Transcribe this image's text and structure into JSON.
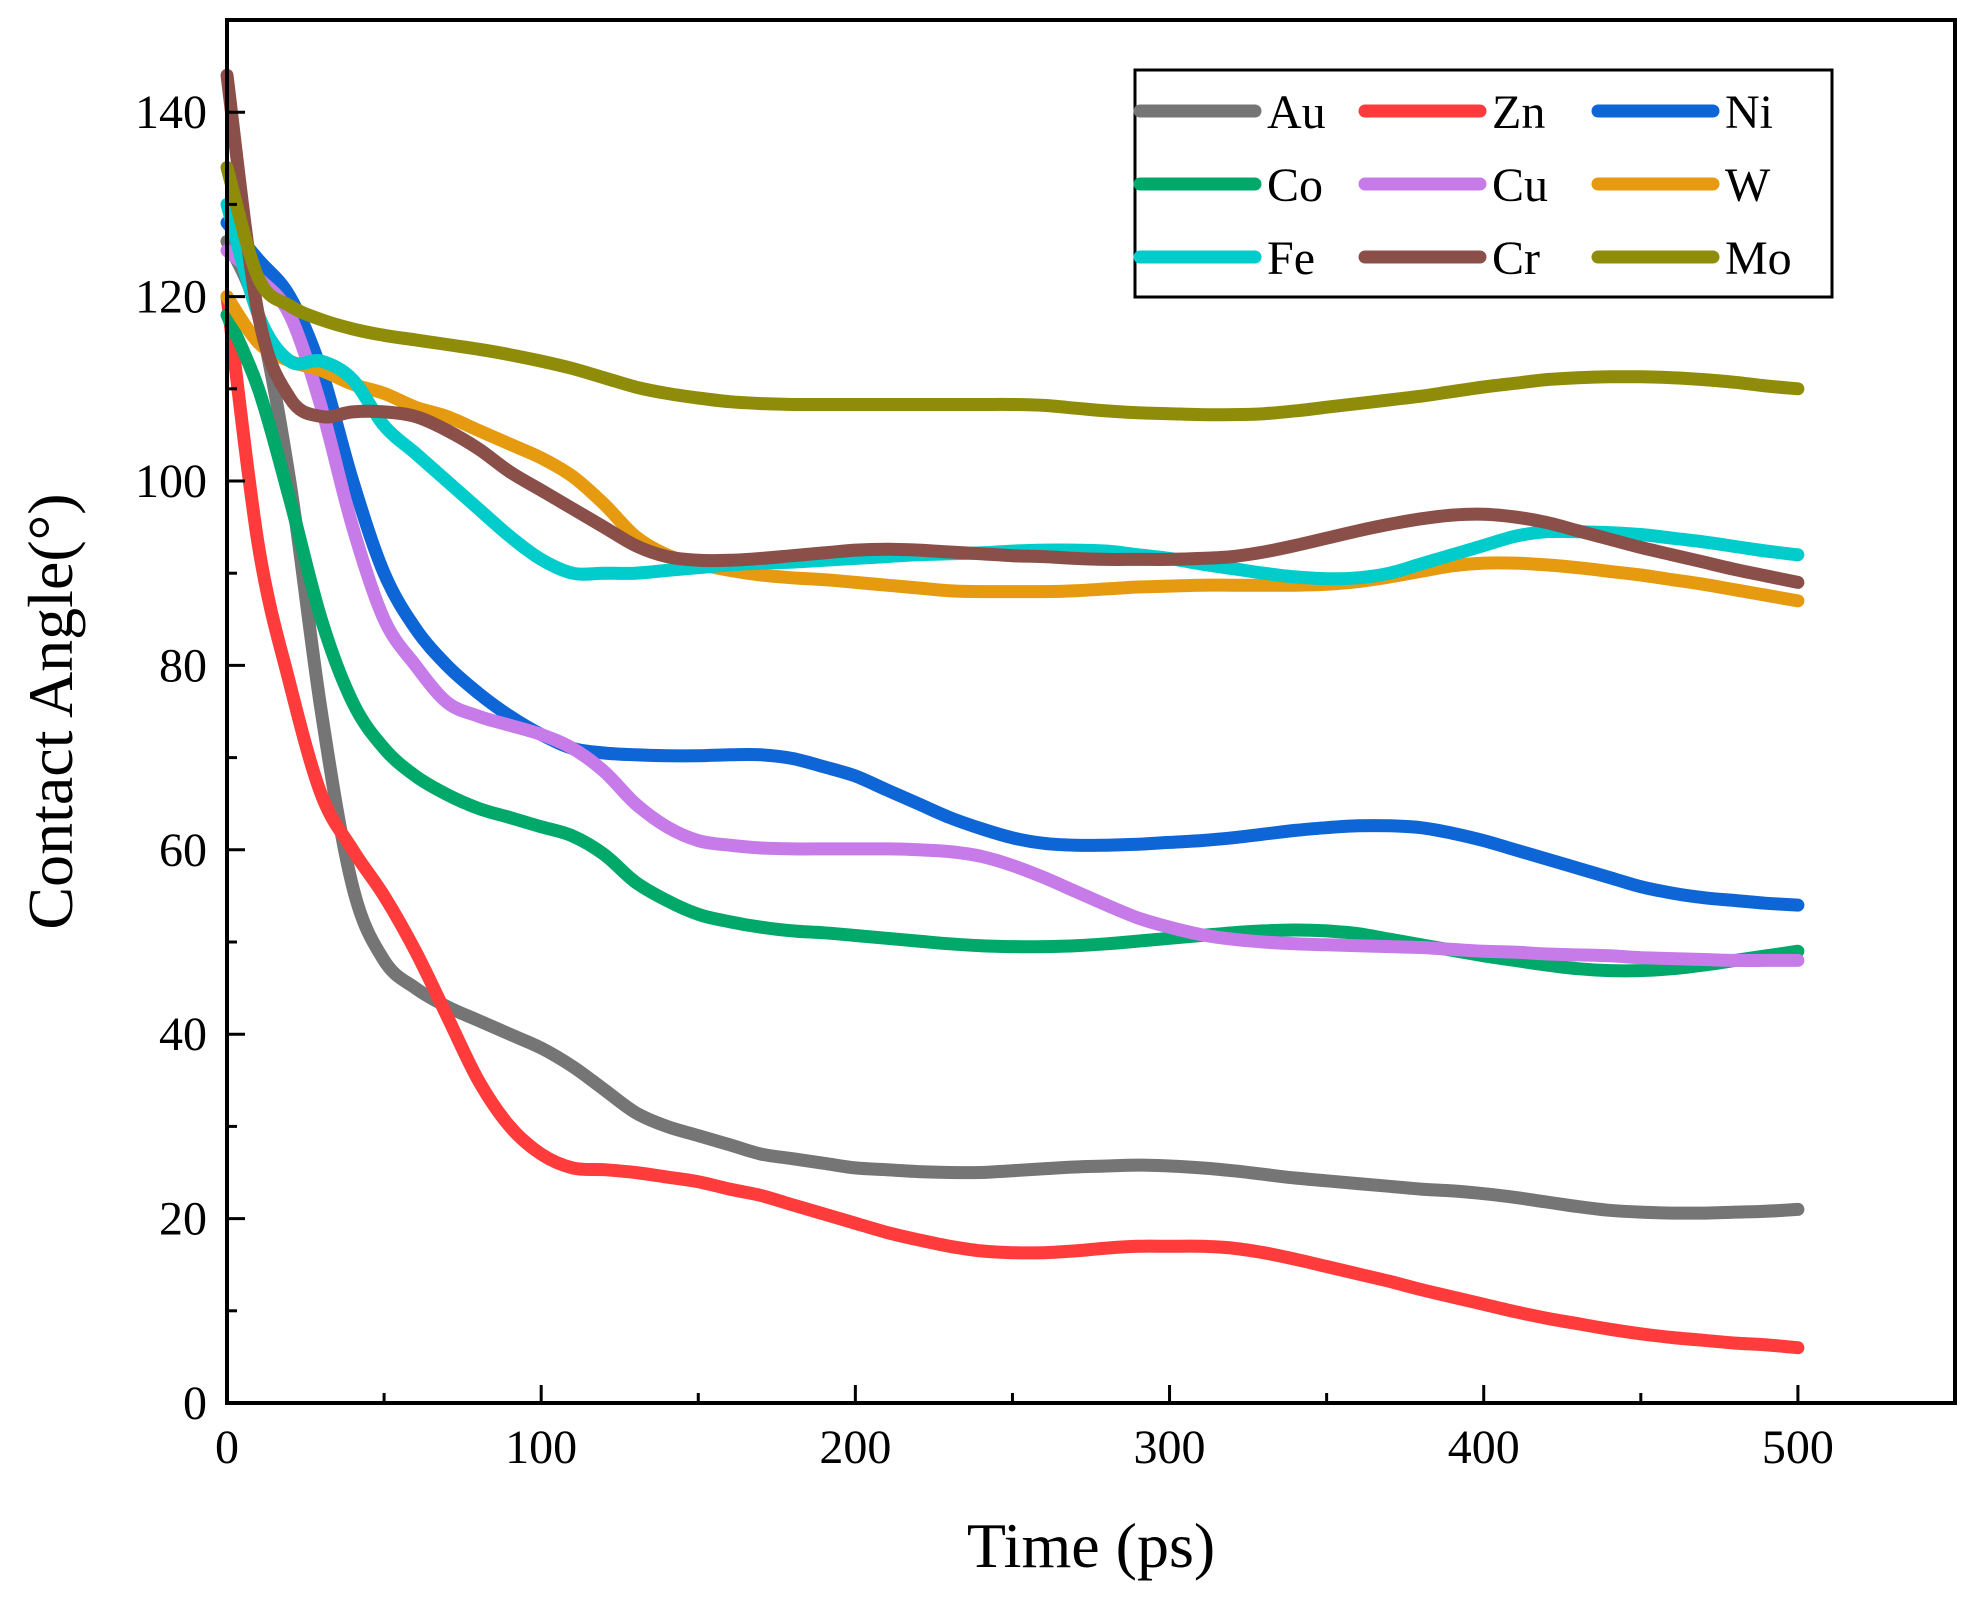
{
  "chart_data": {
    "type": "line",
    "title": "",
    "xlabel": "Time (ps)",
    "ylabel": "Contact Angle(°)",
    "xlim": [
      0,
      550
    ],
    "ylim": [
      0,
      150
    ],
    "xticks": [
      0,
      100,
      200,
      300,
      400,
      500
    ],
    "yticks": [
      0,
      20,
      40,
      60,
      80,
      100,
      120,
      140
    ],
    "grid": false,
    "legend_position": "top-right",
    "x": [
      0,
      10,
      20,
      30,
      40,
      50,
      60,
      70,
      80,
      90,
      100,
      110,
      120,
      130,
      140,
      150,
      160,
      170,
      180,
      190,
      200,
      210,
      220,
      230,
      240,
      250,
      260,
      270,
      280,
      290,
      300,
      310,
      320,
      330,
      340,
      350,
      360,
      370,
      380,
      390,
      400,
      410,
      420,
      430,
      440,
      450,
      460,
      470,
      480,
      490,
      500
    ],
    "series": [
      {
        "name": "Au",
        "color": "#757575",
        "values": [
          126,
          118,
          100,
          75,
          56,
          48,
          45,
          43,
          41.5,
          40,
          38.5,
          36.5,
          34,
          31.5,
          30,
          29,
          28,
          27,
          26.5,
          26,
          25.5,
          25.3,
          25.1,
          25,
          25,
          25.2,
          25.4,
          25.6,
          25.7,
          25.8,
          25.7,
          25.5,
          25.2,
          24.8,
          24.4,
          24.1,
          23.8,
          23.5,
          23.2,
          23,
          22.7,
          22.3,
          21.8,
          21.3,
          20.9,
          20.7,
          20.6,
          20.6,
          20.7,
          20.8,
          21
        ]
      },
      {
        "name": "Zn",
        "color": "#ff3b3b",
        "values": [
          120,
          93,
          78,
          66,
          60,
          55,
          49,
          42,
          35,
          30,
          27,
          25.5,
          25.3,
          25,
          24.5,
          24,
          23.2,
          22.5,
          21.5,
          20.5,
          19.5,
          18.5,
          17.7,
          17,
          16.5,
          16.3,
          16.3,
          16.5,
          16.8,
          17,
          17,
          17,
          16.8,
          16.3,
          15.6,
          14.8,
          14,
          13.2,
          12.3,
          11.5,
          10.7,
          9.9,
          9.2,
          8.6,
          8,
          7.5,
          7.1,
          6.8,
          6.5,
          6.3,
          6
        ]
      },
      {
        "name": "Ni",
        "color": "#0e66d6",
        "values": [
          128,
          124,
          120,
          112,
          100,
          90,
          84,
          80,
          77,
          74.5,
          72.5,
          71,
          70.5,
          70.3,
          70.2,
          70.2,
          70.3,
          70.3,
          69.9,
          69,
          68,
          66.5,
          65,
          63.5,
          62.3,
          61.3,
          60.7,
          60.5,
          60.5,
          60.6,
          60.8,
          61,
          61.3,
          61.7,
          62.1,
          62.4,
          62.6,
          62.6,
          62.4,
          61.8,
          61,
          60,
          59,
          58,
          57,
          56,
          55.3,
          54.8,
          54.5,
          54.2,
          54
        ]
      },
      {
        "name": "Co",
        "color": "#00a86a",
        "values": [
          118,
          110,
          98,
          85,
          76,
          71,
          68,
          66,
          64.5,
          63.5,
          62.5,
          61.5,
          59.5,
          56.5,
          54.5,
          53,
          52.2,
          51.6,
          51.2,
          51,
          50.7,
          50.4,
          50.1,
          49.8,
          49.6,
          49.5,
          49.5,
          49.6,
          49.8,
          50.1,
          50.4,
          50.7,
          51,
          51.2,
          51.3,
          51.2,
          50.9,
          50.3,
          49.7,
          49.1,
          48.5,
          48,
          47.5,
          47.1,
          46.9,
          46.9,
          47.1,
          47.5,
          48,
          48.5,
          49
        ]
      },
      {
        "name": "Cu",
        "color": "#c77be8",
        "values": [
          125,
          122,
          118,
          108,
          95,
          85,
          80,
          76,
          74.5,
          73.5,
          72.5,
          71,
          68.5,
          65,
          62.5,
          61,
          60.5,
          60.2,
          60.1,
          60.1,
          60.1,
          60.1,
          60,
          59.8,
          59.3,
          58.3,
          57,
          55.5,
          54,
          52.6,
          51.6,
          50.8,
          50.3,
          50,
          49.8,
          49.7,
          49.6,
          49.5,
          49.4,
          49.2,
          49,
          48.9,
          48.7,
          48.6,
          48.5,
          48.3,
          48.2,
          48.1,
          48,
          48,
          48
        ]
      },
      {
        "name": "W",
        "color": "#e69a0f",
        "values": [
          120,
          115,
          113,
          112,
          110.5,
          109.5,
          108,
          107,
          105.5,
          104,
          102.5,
          100.5,
          97.5,
          94,
          92,
          91,
          90.3,
          89.8,
          89.5,
          89.3,
          89,
          88.7,
          88.4,
          88.1,
          88,
          88,
          88,
          88.1,
          88.3,
          88.5,
          88.6,
          88.7,
          88.7,
          88.7,
          88.7,
          88.8,
          89.1,
          89.6,
          90.2,
          90.8,
          91.1,
          91.1,
          90.9,
          90.6,
          90.2,
          89.8,
          89.3,
          88.8,
          88.2,
          87.6,
          87
        ]
      },
      {
        "name": "Fe",
        "color": "#00cccc",
        "values": [
          130,
          118,
          113,
          113,
          111,
          106,
          103,
          100,
          97,
          94,
          91.5,
          90,
          90,
          90,
          90.3,
          90.6,
          90.9,
          91.1,
          91.2,
          91.4,
          91.6,
          91.8,
          92,
          92.1,
          92.2,
          92.4,
          92.5,
          92.5,
          92.4,
          92,
          91.6,
          91,
          90.5,
          90,
          89.6,
          89.4,
          89.5,
          90,
          91,
          92,
          93,
          94,
          94.5,
          94.5,
          94.4,
          94.2,
          93.8,
          93.4,
          92.9,
          92.4,
          92
        ]
      },
      {
        "name": "Cr",
        "color": "#8b4f4a",
        "values": [
          144,
          118,
          109,
          107,
          107.5,
          107.5,
          107,
          105.5,
          103.5,
          101,
          99,
          97,
          95,
          93,
          91.8,
          91.4,
          91.4,
          91.6,
          91.9,
          92.2,
          92.5,
          92.6,
          92.5,
          92.3,
          92.1,
          91.9,
          91.8,
          91.6,
          91.5,
          91.5,
          91.5,
          91.6,
          91.8,
          92.3,
          93,
          93.8,
          94.6,
          95.3,
          95.9,
          96.3,
          96.4,
          96.1,
          95.5,
          94.6,
          93.7,
          92.8,
          92,
          91.2,
          90.4,
          89.7,
          89
        ]
      },
      {
        "name": "Mo",
        "color": "#8f8c0a",
        "values": [
          134,
          122,
          119,
          117.5,
          116.5,
          115.8,
          115.3,
          114.8,
          114.3,
          113.7,
          113,
          112.2,
          111.2,
          110.2,
          109.5,
          109,
          108.6,
          108.4,
          108.3,
          108.3,
          108.3,
          108.3,
          108.3,
          108.3,
          108.3,
          108.3,
          108.2,
          107.9,
          107.6,
          107.4,
          107.3,
          107.2,
          107.2,
          107.3,
          107.6,
          108,
          108.4,
          108.8,
          109.2,
          109.7,
          110.2,
          110.6,
          111,
          111.2,
          111.3,
          111.3,
          111.2,
          111,
          110.7,
          110.3,
          110
        ]
      }
    ]
  }
}
